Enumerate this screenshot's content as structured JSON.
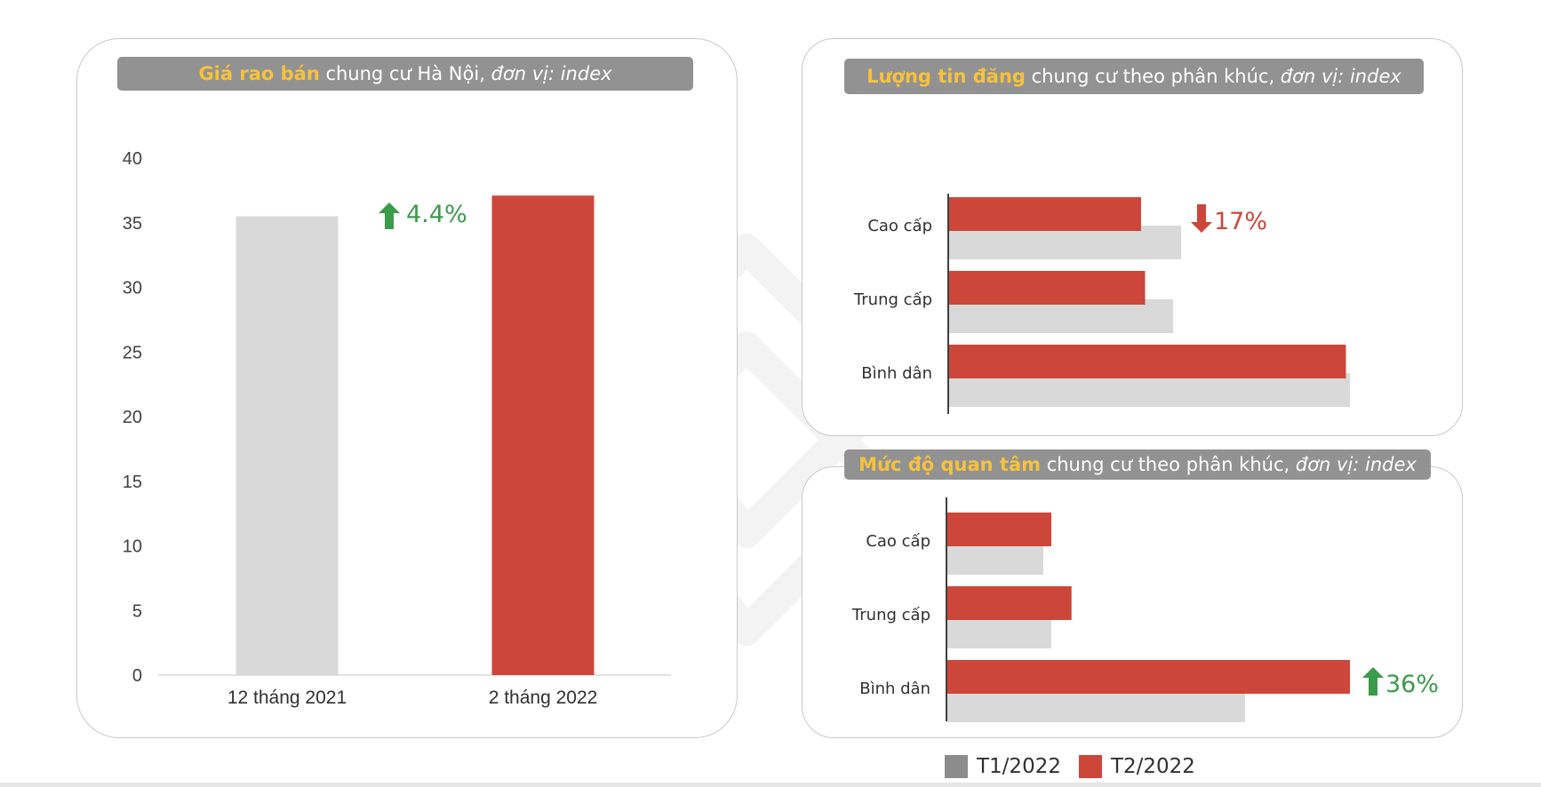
{
  "colors": {
    "t1": "#d9d9d9",
    "t2": "#cd463a",
    "up": "#3a9b4a",
    "down": "#cd463a",
    "title_bg": "#929292",
    "title_hl": "#f6c23e"
  },
  "left_title": {
    "highlight": "Giá rao bán",
    "rest": " chung cư Hà Nội, ",
    "italic": "đơn vị: index"
  },
  "tr_title": {
    "highlight": "Lượng tin đăng",
    "rest": " chung cư theo phân khúc, ",
    "italic": "đơn vị: index"
  },
  "br_title": {
    "highlight": "Mức độ quan tâm",
    "rest": " chung cư theo phân khúc, ",
    "italic": "đơn vị: index"
  },
  "legend": {
    "t1": "T1/2022",
    "t2": "T2/2022",
    "t1_color": "#8c8c8c",
    "t2_color": "#cd463a"
  },
  "chart_data": [
    {
      "type": "bar",
      "title": "Giá rao bán chung cư Hà Nội, đơn vị: index",
      "categories": [
        "12 tháng 2021",
        "2 tháng 2022"
      ],
      "values": [
        35.5,
        37.1
      ],
      "ylim": [
        0,
        40
      ],
      "yticks": [
        0,
        5,
        10,
        15,
        20,
        25,
        30,
        35,
        40
      ],
      "ytick_labels": [
        "0",
        "5",
        "10",
        "15",
        "20",
        "25",
        "30",
        "35",
        "40"
      ],
      "grid": false,
      "annotation": {
        "text": "4.4%",
        "direction": "up"
      }
    },
    {
      "type": "bar",
      "orientation": "horizontal",
      "title": "Lượng tin đăng chung cư theo phân khúc, đơn vị: index",
      "categories": [
        "Cao cấp",
        "Trung cấp",
        "Bình dân"
      ],
      "series": [
        {
          "name": "T1/2022",
          "values": [
            58,
            56,
            100
          ]
        },
        {
          "name": "T2/2022",
          "values": [
            48,
            49,
            99
          ]
        }
      ],
      "xlim": [
        0,
        100
      ],
      "annotation": {
        "text": "17%",
        "direction": "down",
        "category": "Cao cấp"
      }
    },
    {
      "type": "bar",
      "orientation": "horizontal",
      "title": "Mức độ quan tâm chung cư theo phân khúc, đơn vị: index",
      "categories": [
        "Cao cấp",
        "Trung cấp",
        "Bình dân"
      ],
      "series": [
        {
          "name": "T1/2022",
          "values": [
            24,
            26,
            74
          ]
        },
        {
          "name": "T2/2022",
          "values": [
            26,
            31,
            100
          ]
        }
      ],
      "xlim": [
        0,
        100
      ],
      "annotation": {
        "text": "36%",
        "direction": "up",
        "category": "Bình dân"
      }
    }
  ]
}
